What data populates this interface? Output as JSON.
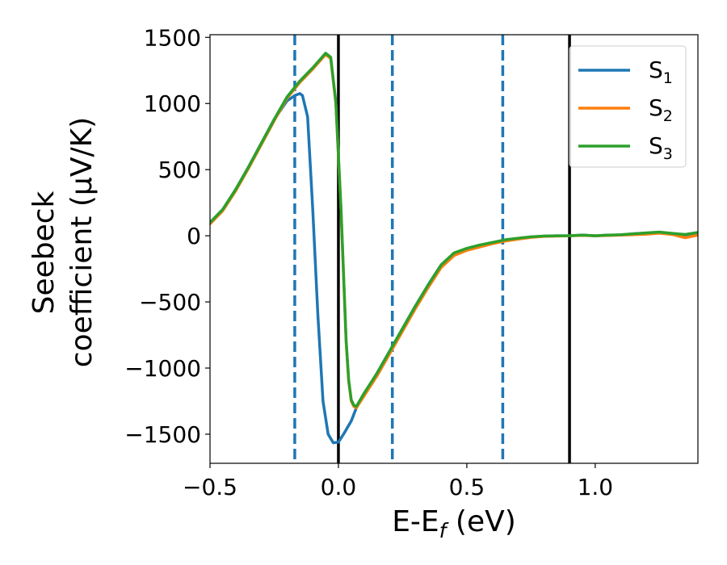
{
  "chart_data": {
    "type": "line",
    "xlabel": "E-E",
    "xlabel_sub": "f",
    "xlabel_unit": " (eV)",
    "ylabel_line1": "Seebeck",
    "ylabel_line2": "coefficient  (μV/K)",
    "xlim": [
      -0.5,
      1.4
    ],
    "ylim": [
      -1720,
      1520
    ],
    "xticks": [
      -0.5,
      0.0,
      0.5,
      1.0
    ],
    "xtick_labels": [
      "−0.5",
      "0.0",
      "0.5",
      "1.0"
    ],
    "yticks": [
      1500,
      1000,
      500,
      0,
      -500,
      -1000,
      -1500
    ],
    "ytick_labels": [
      "1500",
      "1000",
      "500",
      "0",
      "−500",
      "−1000",
      "−1500"
    ],
    "grid": false,
    "legend_position": "top-right",
    "vlines": [
      {
        "x": -0.17,
        "style": "dashed",
        "color": "#1f77b4"
      },
      {
        "x": 0.0,
        "style": "solid",
        "color": "#000000"
      },
      {
        "x": 0.21,
        "style": "dashed",
        "color": "#1f77b4"
      },
      {
        "x": 0.64,
        "style": "dashed",
        "color": "#1f77b4"
      },
      {
        "x": 0.9,
        "style": "solid",
        "color": "#000000"
      }
    ],
    "series": [
      {
        "name": "S",
        "name_sub": "1",
        "color": "#1f77b4",
        "x": [
          -0.5,
          -0.45,
          -0.4,
          -0.35,
          -0.3,
          -0.25,
          -0.2,
          -0.17,
          -0.15,
          -0.14,
          -0.12,
          -0.1,
          -0.08,
          -0.06,
          -0.04,
          -0.02,
          0.0,
          0.02,
          0.05,
          0.07,
          0.1,
          0.15,
          0.2,
          0.25,
          0.3,
          0.35,
          0.4,
          0.45,
          0.5,
          0.55,
          0.6,
          0.65,
          0.7,
          0.75,
          0.8,
          0.85,
          0.9,
          0.95,
          1.0,
          1.05,
          1.1,
          1.15,
          1.2,
          1.25,
          1.3,
          1.35,
          1.4
        ],
        "y": [
          100,
          200,
          350,
          520,
          700,
          880,
          1020,
          1060,
          1075,
          1060,
          900,
          200,
          -600,
          -1250,
          -1500,
          -1565,
          -1560,
          -1500,
          -1400,
          -1300,
          -1200,
          -1040,
          -870,
          -700,
          -530,
          -370,
          -220,
          -140,
          -100,
          -80,
          -55,
          -35,
          -20,
          -10,
          -3,
          0,
          0,
          5,
          0,
          5,
          5,
          15,
          20,
          25,
          15,
          5,
          20
        ]
      },
      {
        "name": "S",
        "name_sub": "2",
        "color": "#ff7f0e",
        "x": [
          -0.5,
          -0.45,
          -0.4,
          -0.35,
          -0.3,
          -0.25,
          -0.2,
          -0.15,
          -0.1,
          -0.05,
          -0.03,
          -0.01,
          0.0,
          0.01,
          0.02,
          0.03,
          0.04,
          0.05,
          0.06,
          0.07,
          0.1,
          0.15,
          0.2,
          0.25,
          0.3,
          0.35,
          0.4,
          0.45,
          0.5,
          0.55,
          0.6,
          0.65,
          0.7,
          0.75,
          0.8,
          0.85,
          0.9,
          0.95,
          1.0,
          1.05,
          1.1,
          1.15,
          1.2,
          1.25,
          1.3,
          1.35,
          1.4
        ],
        "y": [
          90,
          190,
          340,
          510,
          690,
          870,
          1040,
          1160,
          1260,
          1370,
          1340,
          1000,
          600,
          200,
          -300,
          -800,
          -1100,
          -1250,
          -1290,
          -1300,
          -1210,
          -1060,
          -890,
          -720,
          -550,
          -390,
          -240,
          -150,
          -110,
          -85,
          -60,
          -40,
          -25,
          -12,
          -5,
          -2,
          0,
          3,
          0,
          2,
          5,
          8,
          12,
          20,
          10,
          -15,
          5
        ]
      },
      {
        "name": "S",
        "name_sub": "3",
        "color": "#2ca02c",
        "x": [
          -0.5,
          -0.45,
          -0.4,
          -0.35,
          -0.3,
          -0.25,
          -0.2,
          -0.15,
          -0.1,
          -0.05,
          -0.03,
          -0.01,
          0.0,
          0.01,
          0.02,
          0.03,
          0.04,
          0.05,
          0.06,
          0.07,
          0.1,
          0.15,
          0.2,
          0.25,
          0.3,
          0.35,
          0.4,
          0.45,
          0.5,
          0.55,
          0.6,
          0.65,
          0.7,
          0.75,
          0.8,
          0.85,
          0.9,
          0.95,
          1.0,
          1.05,
          1.1,
          1.15,
          1.2,
          1.25,
          1.3,
          1.35,
          1.4
        ],
        "y": [
          100,
          200,
          350,
          520,
          700,
          880,
          1050,
          1170,
          1270,
          1380,
          1350,
          1010,
          610,
          210,
          -290,
          -790,
          -1090,
          -1240,
          -1280,
          -1290,
          -1190,
          -1040,
          -870,
          -700,
          -530,
          -370,
          -220,
          -130,
          -95,
          -70,
          -50,
          -30,
          -18,
          -8,
          -2,
          0,
          0,
          5,
          0,
          5,
          8,
          15,
          22,
          28,
          18,
          10,
          25
        ]
      }
    ]
  }
}
